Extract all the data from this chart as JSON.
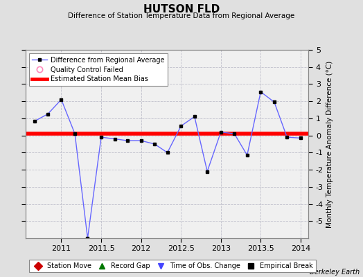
{
  "title": "HUTSON FLD",
  "subtitle": "Difference of Station Temperature Data from Regional Average",
  "ylabel_right": "Monthly Temperature Anomaly Difference (°C)",
  "attribution": "Berkeley Earth",
  "xlim": [
    2010.55,
    2014.1
  ],
  "ylim": [
    -6,
    5
  ],
  "yticks_right": [
    -5,
    -4,
    -3,
    -2,
    -1,
    0,
    1,
    2,
    3,
    4,
    5
  ],
  "xticks": [
    2011,
    2011.5,
    2012,
    2012.5,
    2013,
    2013.5,
    2014
  ],
  "xticklabels": [
    "2011",
    "2011.5",
    "2012",
    "2012.5",
    "2013",
    "2013.5",
    "2014"
  ],
  "bias_line_y": 0.12,
  "background_color": "#e0e0e0",
  "plot_bg_color": "#f0f0f0",
  "grid_color": "#c0c0cc",
  "line_color": "#6666ff",
  "bias_color": "#ff0000",
  "marker_color": "#000000",
  "x_data": [
    2010.67,
    2010.83,
    2011.0,
    2011.17,
    2011.33,
    2011.5,
    2011.67,
    2011.83,
    2012.0,
    2012.17,
    2012.33,
    2012.5,
    2012.67,
    2012.83,
    2013.0,
    2013.17,
    2013.33,
    2013.5,
    2013.67,
    2013.83,
    2014.0
  ],
  "y_data": [
    0.85,
    1.25,
    2.1,
    0.1,
    -6.0,
    -0.1,
    -0.2,
    -0.3,
    -0.3,
    -0.5,
    -1.0,
    0.55,
    1.1,
    -2.1,
    0.2,
    0.1,
    -1.15,
    2.55,
    1.95,
    -0.1,
    -0.15
  ],
  "legend_line_label": "Difference from Regional Average",
  "legend_circle_label": "Quality Control Failed",
  "legend_bias_label": "Estimated Station Mean Bias",
  "bottom_legend": [
    {
      "label": "Station Move",
      "marker": "D",
      "color": "#cc0000"
    },
    {
      "label": "Record Gap",
      "marker": "^",
      "color": "#007700"
    },
    {
      "label": "Time of Obs. Change",
      "marker": "v",
      "color": "#4444ff"
    },
    {
      "label": "Empirical Break",
      "marker": "s",
      "color": "#000000"
    }
  ]
}
